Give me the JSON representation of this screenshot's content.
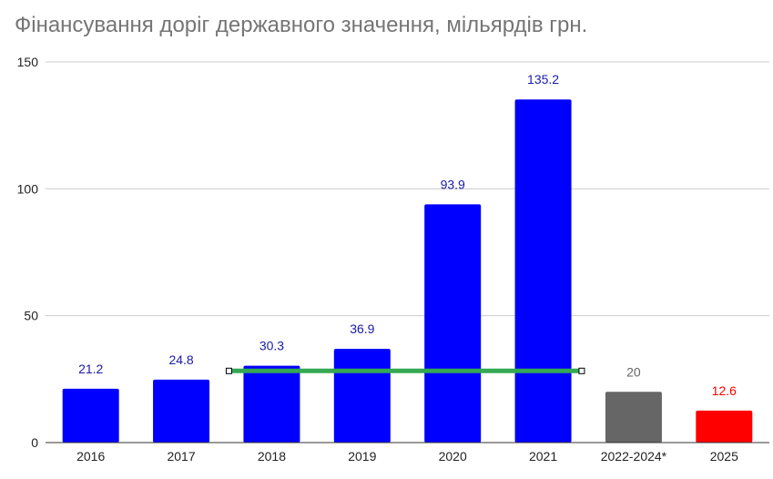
{
  "chart_data": {
    "type": "bar",
    "title": "Фінансування доріг державного значення, мільярдів грн.",
    "xlabel": "",
    "ylabel": "",
    "ylim": [
      0,
      150
    ],
    "y_ticks": [
      "0",
      "50",
      "100",
      "150"
    ],
    "grid": true,
    "legend": "none",
    "categories": [
      "2016",
      "2017",
      "2018",
      "2019",
      "2020",
      "2021",
      "2022-2024*",
      "2025"
    ],
    "values": [
      21.2,
      24.8,
      30.3,
      36.9,
      93.9,
      135.2,
      20,
      12.6
    ],
    "data_labels": [
      "21.2",
      "24.8",
      "30.3",
      "36.9",
      "93.9",
      "135.2",
      "20",
      "12.6"
    ],
    "bar_colors": [
      "#0000ff",
      "#0000ff",
      "#0000ff",
      "#0000ff",
      "#0000ff",
      "#0000ff",
      "#666666",
      "#ff0000"
    ],
    "label_colors": [
      "#1a1aa8",
      "#1a1aa8",
      "#1a1aa8",
      "#1a1aa8",
      "#1a1aa8",
      "#1a1aa8",
      "#666666",
      "#ff0000"
    ],
    "reference_line": {
      "value": 28.6,
      "from_category": "2018",
      "to_category": "2022-2024*",
      "color": "#34a853"
    }
  }
}
